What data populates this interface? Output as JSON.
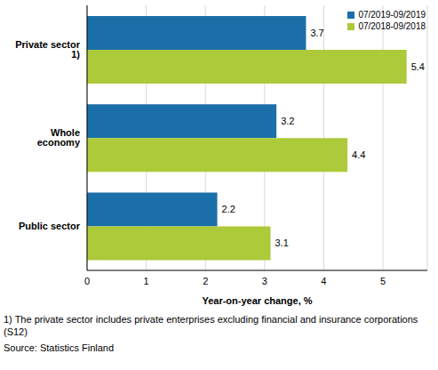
{
  "chart_data": {
    "type": "bar",
    "orientation": "horizontal",
    "categories": [
      "Private sector 1)",
      "Whole economy",
      "Public sector"
    ],
    "series": [
      {
        "name": "07/2019-09/2019",
        "color": "#1b6fa8",
        "values": [
          3.7,
          3.2,
          2.2
        ]
      },
      {
        "name": "07/2018-09/2018",
        "color": "#acca3a",
        "values": [
          5.4,
          4.4,
          3.1
        ]
      }
    ],
    "x_label": "Year-on-year change, %",
    "xlim": [
      0,
      5.75
    ],
    "xticks": [
      0,
      1,
      2,
      3,
      4,
      5
    ],
    "grid": true,
    "legend": "upper right",
    "data_labels": true,
    "annotations": [
      "1) The private sector includes private enterprises excluding financial and insurance corporations (S12)",
      "Source: Statistics Finland"
    ]
  }
}
